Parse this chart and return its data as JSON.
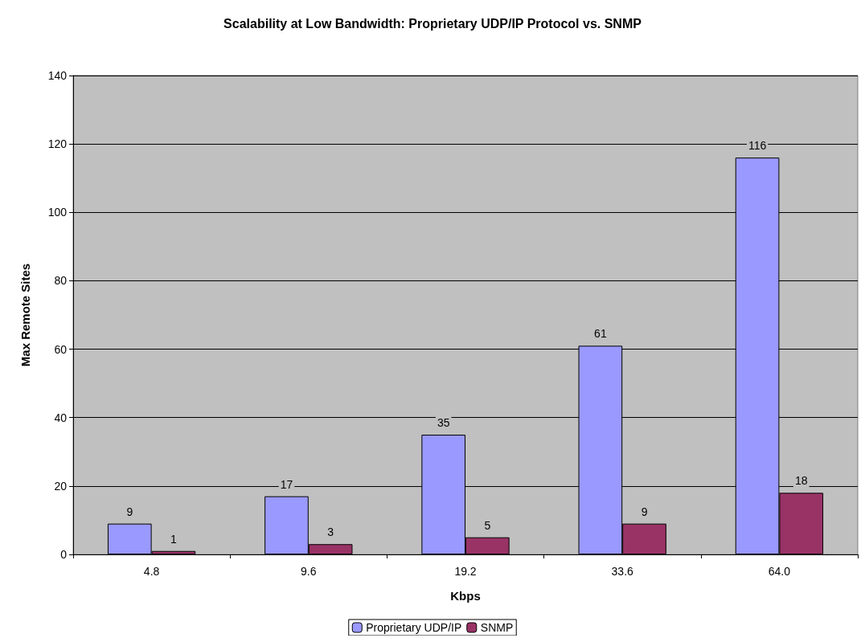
{
  "chart_data": {
    "type": "bar",
    "title": "Scalability at Low Bandwidth: Proprietary UDP/IP Protocol vs. SNMP",
    "xlabel": "Kbps",
    "ylabel": "Max Remote Sites",
    "categories": [
      "4.8",
      "9.6",
      "19.2",
      "33.6",
      "64.0"
    ],
    "series": [
      {
        "name": "Proprietary UDP/IP",
        "color": "#9999ff",
        "values": [
          9,
          17,
          35,
          61,
          116
        ]
      },
      {
        "name": "SNMP",
        "color": "#993366",
        "values": [
          1,
          3,
          5,
          9,
          18
        ]
      }
    ],
    "ylim": [
      0,
      140
    ],
    "yticks": [
      0,
      20,
      40,
      60,
      80,
      100,
      120,
      140
    ],
    "grid": "y",
    "legend": "bottom",
    "data_labels": true
  }
}
